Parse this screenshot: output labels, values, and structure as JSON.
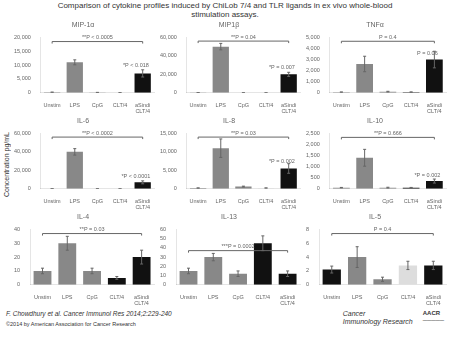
{
  "title": "Comparison of cytokine profiles induced by ChiLob 7/4 and TLR ligands in ex vivo whole-blood\nstimulation assays.",
  "ylabel": "Concentration pg/mL",
  "annotations": [
    "F. Chowdhury et al. Cancer Immunol Res 2014;2:229-240",
    "©2014 by American Association for Cancer Research",
    "Cancer",
    "Immunology Research",
    "AACR",
    "─────"
  ],
  "chart_data": [
    {
      "type": "bar",
      "title": "MIP-1α",
      "categories": [
        "Unstim",
        "LPS",
        "CpG",
        "CLT/4",
        "aSindi\nCLT/4"
      ],
      "values": [
        200,
        11000,
        120,
        60,
        7000
      ],
      "errors": [
        60,
        900,
        35,
        25,
        1300
      ],
      "colors": [
        "#888888",
        "#888888",
        "#888888",
        "#111111",
        "#111111"
      ],
      "ylim": [
        0,
        20000
      ],
      "yticks": [
        0,
        {
          "value": 5000,
          "label": "5,000"
        },
        {
          "value": 10000,
          "label": "10,000"
        },
        {
          "value": 15000,
          "label": "15,000"
        },
        {
          "value": 20000,
          "label": "20,000"
        }
      ],
      "grid": false,
      "annotations": [
        {
          "text": "**P < 0.0005",
          "x": [
            "Unstim",
            "aSindi\nCLT/4"
          ],
          "y": 18500
        },
        {
          "text": "*P < 0.018",
          "x": "aSindi\nCLT/4",
          "y": 8800
        }
      ]
    },
    {
      "type": "bar",
      "title": "MIP1β",
      "categories": [
        "Unstim",
        "LPS",
        "CpG",
        "CLT/4",
        "aSindi\nCLT/4"
      ],
      "values": [
        200,
        50000,
        100,
        60,
        20000
      ],
      "errors": [
        50,
        3500,
        30,
        20,
        2200
      ],
      "colors": [
        "#888888",
        "#888888",
        "#888888",
        "#111111",
        "#111111"
      ],
      "ylim": [
        0,
        60000
      ],
      "yticks": [
        0,
        {
          "value": 20000,
          "label": "20,000"
        },
        {
          "value": 40000,
          "label": "40,000"
        },
        {
          "value": 60000,
          "label": "60,000"
        }
      ],
      "grid": false,
      "annotations": [
        {
          "text": "**P = 0.04",
          "x": [
            "Unstim",
            "aSindi\nCLT/4"
          ],
          "y": 56000
        },
        {
          "text": "*P = 0.007",
          "x": "aSindi\nCLT/4",
          "y": 24600
        }
      ]
    },
    {
      "type": "bar",
      "title": "TNFα",
      "categories": [
        "Unstim",
        "LPS",
        "CpG",
        "CLT/4",
        "aSindi\nCLT/4"
      ],
      "values": [
        60,
        2600,
        100,
        60,
        3000
      ],
      "errors": [
        15,
        700,
        35,
        20,
        750
      ],
      "colors": [
        "#888888",
        "#888888",
        "#888888",
        "#111111",
        "#111111"
      ],
      "ylim": [
        0,
        5000
      ],
      "yticks": [
        0,
        {
          "value": 1000,
          "label": "1,000"
        },
        {
          "value": 2000,
          "label": "2,000"
        },
        {
          "value": 3000,
          "label": "3,000"
        },
        {
          "value": 4000,
          "label": "4,000"
        },
        {
          "value": 5000,
          "label": "5,000"
        }
      ],
      "grid": false,
      "annotations": [
        {
          "text": "P = 0.4",
          "x": [
            "Unstim",
            "aSindi\nCLT/4"
          ],
          "y": 4650
        },
        {
          "text": "P = 0.06",
          "x": "aSindi\nCLT/4",
          "y": 3300
        }
      ]
    },
    {
      "type": "bar",
      "title": "IL-6",
      "categories": [
        "Unstim",
        "LPS",
        "CpG",
        "CLT/4",
        "aSindi\nCLT/4"
      ],
      "values": [
        100,
        40000,
        100,
        60,
        7000
      ],
      "errors": [
        25,
        3500,
        30,
        20,
        1600
      ],
      "colors": [
        "#888888",
        "#888888",
        "#888888",
        "#111111",
        "#111111"
      ],
      "ylim": [
        0,
        60000
      ],
      "yticks": [
        0,
        {
          "value": 20000,
          "label": "20,000"
        },
        {
          "value": 40000,
          "label": "40,000"
        },
        {
          "value": 60000,
          "label": "60,000"
        }
      ],
      "grid": false,
      "annotations": [
        {
          "text": "**P < 0.0002",
          "x": [
            "Unstim",
            "aSindi\nCLT/4"
          ],
          "y": 56000
        },
        {
          "text": "*P < 0.0001",
          "x": "aSindi\nCLT/4",
          "y": 10800
        }
      ]
    },
    {
      "type": "bar",
      "title": "IL-8",
      "categories": [
        "Unstim",
        "LPS",
        "CpG",
        "CLT/4",
        "aSindi\nCLT/4"
      ],
      "values": [
        200,
        11000,
        600,
        200,
        5500
      ],
      "errors": [
        50,
        2500,
        120,
        50,
        1300
      ],
      "colors": [
        "#888888",
        "#888888",
        "#888888",
        "#dddddd",
        "#111111"
      ],
      "ylim": [
        0,
        15000
      ],
      "yticks": [
        0,
        {
          "value": 5000,
          "label": "5,000"
        },
        {
          "value": 10000,
          "label": "10,000"
        },
        {
          "value": 15000,
          "label": "15,000"
        }
      ],
      "grid": false,
      "annotations": [
        {
          "text": "**P = 0.03",
          "x": [
            "Unstim",
            "aSindi\nCLT/4"
          ],
          "y": 14000
        },
        {
          "text": "*P = 0.002",
          "x": "aSindi\nCLT/4",
          "y": 6600
        }
      ]
    },
    {
      "type": "bar",
      "title": "IL-10",
      "categories": [
        "Unstim",
        "LPS",
        "CpG",
        "CLT/4",
        "aSindi\nCLT/4"
      ],
      "values": [
        50,
        1400,
        50,
        50,
        350
      ],
      "errors": [
        12,
        380,
        20,
        12,
        90
      ],
      "colors": [
        "#888888",
        "#888888",
        "#888888",
        "#111111",
        "#111111"
      ],
      "ylim": [
        0,
        2500
      ],
      "yticks": [
        0,
        500,
        {
          "value": 1000,
          "label": "1,000"
        },
        {
          "value": 1500,
          "label": "1,500"
        },
        {
          "value": 2000,
          "label": "2,000"
        },
        {
          "value": 2500,
          "label": "2,500"
        }
      ],
      "grid": false,
      "annotations": [
        {
          "text": "**P = 0.666",
          "x": [
            "Unstim",
            "aSindi\nCLT/4"
          ],
          "y": 2320
        },
        {
          "text": "*P = 0.002",
          "x": "aSindi\nCLT/4",
          "y": 475
        }
      ]
    },
    {
      "type": "bar",
      "title": "IL-4",
      "categories": [
        "Unstim",
        "LPS",
        "CpG",
        "CLT/4",
        "aSindi\nCLT/4"
      ],
      "values": [
        10,
        30,
        10,
        5,
        20
      ],
      "errors": [
        2,
        5,
        2,
        1,
        5
      ],
      "colors": [
        "#888888",
        "#888888",
        "#888888",
        "#111111",
        "#111111"
      ],
      "ylim": [
        0,
        40
      ],
      "yticks": [
        0,
        10,
        20,
        30,
        40
      ],
      "grid": false,
      "annotations": [
        {
          "text": "**P = 0.03",
          "x": [
            "Unstim",
            "aSindi\nCLT/4"
          ],
          "y": 37
        }
      ]
    },
    {
      "type": "bar",
      "title": "IL-13",
      "categories": [
        "Unstim",
        "LPS",
        "CpG",
        "CLT/4",
        "aSindi\nCLT/4"
      ],
      "values": [
        15,
        30,
        12,
        45,
        12
      ],
      "errors": [
        3,
        4,
        3,
        8,
        3
      ],
      "colors": [
        "#888888",
        "#888888",
        "#888888",
        "#111111",
        "#111111"
      ],
      "ylim": [
        0,
        60
      ],
      "yticks": [
        0,
        10,
        20,
        30,
        40,
        50,
        60
      ],
      "grid": false,
      "annotations": [
        {
          "text": "***P = 0.0002",
          "x": [
            "Unstim",
            "aSindi\nCLT/4"
          ],
          "y": 37
        }
      ]
    },
    {
      "type": "bar",
      "title": "IL-5",
      "categories": [
        "Unstim",
        "LPS",
        "CpG",
        "CLT/4",
        "aSindi\nCLT/4"
      ],
      "values": [
        2.2,
        4.0,
        0.8,
        2.8,
        2.8
      ],
      "errors": [
        0.5,
        1.5,
        0.3,
        0.6,
        0.6
      ],
      "colors": [
        "#111111",
        "#888888",
        "#888888",
        "#dddddd",
        "#111111"
      ],
      "ylim": [
        0,
        8
      ],
      "yticks": [
        0,
        2,
        4,
        6,
        8
      ],
      "grid": false,
      "annotations": [
        {
          "text": "P = 0.4",
          "x": [
            "Unstim",
            "aSindi\nCLT/4"
          ],
          "y": 7.4
        }
      ]
    }
  ]
}
